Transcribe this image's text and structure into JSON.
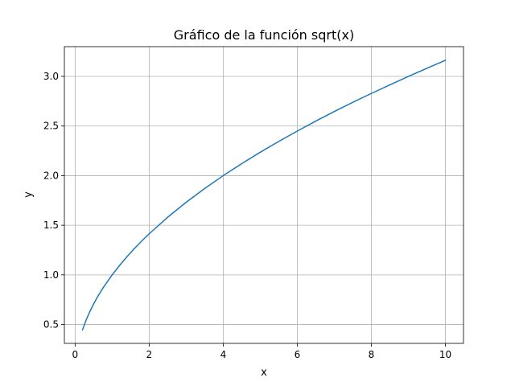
{
  "chart_data": {
    "type": "line",
    "title": "Gráfico de la función sqrt(x)",
    "xlabel": "x",
    "ylabel": "y",
    "xlim": [
      -0.29,
      10.49
    ],
    "ylim": [
      0.31,
      3.3
    ],
    "x_ticks": [
      0,
      2,
      4,
      6,
      8,
      10
    ],
    "x_tick_labels": [
      "0",
      "2",
      "4",
      "6",
      "8",
      "10"
    ],
    "y_ticks": [
      0.5,
      1.0,
      1.5,
      2.0,
      2.5,
      3.0
    ],
    "y_tick_labels": [
      "0.5",
      "1.0",
      "1.5",
      "2.0",
      "2.5",
      "3.0"
    ],
    "grid": true,
    "series": [
      {
        "color": "#1f77b4",
        "x": [
          0.2,
          0.3,
          0.4,
          0.5,
          0.6,
          0.7,
          0.8,
          1.0,
          1.2,
          1.4,
          1.6,
          1.8,
          2.0,
          2.5,
          3.0,
          3.5,
          4.0,
          4.5,
          5.0,
          5.5,
          6.0,
          6.5,
          7.0,
          7.5,
          8.0,
          8.5,
          9.0,
          9.5,
          10.0
        ],
        "y": [
          0.447,
          0.548,
          0.632,
          0.707,
          0.775,
          0.837,
          0.894,
          1.0,
          1.095,
          1.183,
          1.265,
          1.342,
          1.414,
          1.581,
          1.732,
          1.871,
          2.0,
          2.121,
          2.236,
          2.345,
          2.449,
          2.55,
          2.646,
          2.739,
          2.828,
          2.915,
          3.0,
          3.082,
          3.162
        ]
      }
    ]
  }
}
